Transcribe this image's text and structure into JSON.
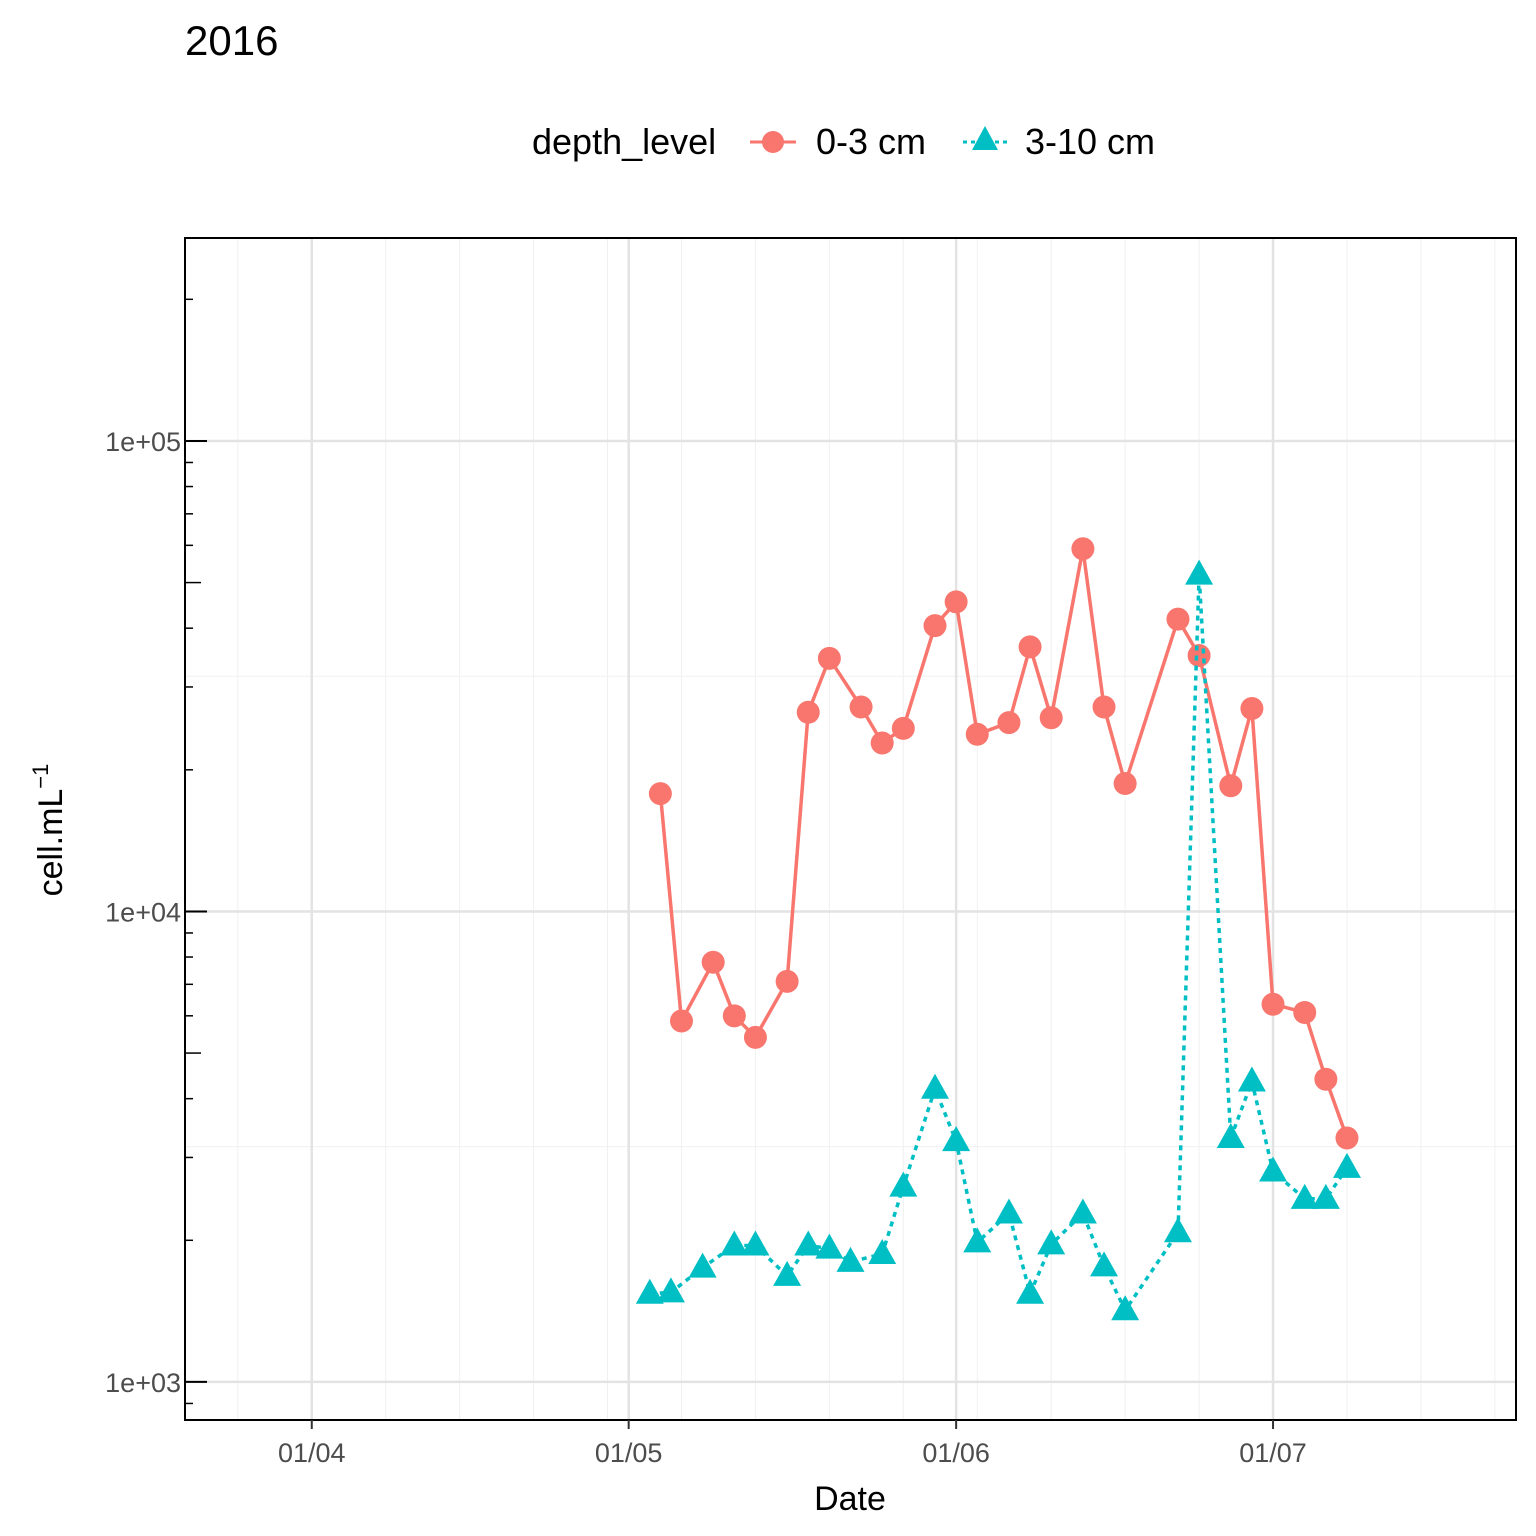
{
  "chart_data": {
    "type": "line",
    "title": "2016",
    "xlabel": "Date",
    "ylabel": "cell.mL",
    "ylabel_superscript": "−1",
    "x_scale": "date",
    "y_scale": "log10",
    "xlim": [
      "2016-03-20",
      "2016-07-24"
    ],
    "ylim": [
      830,
      270000
    ],
    "x_ticks": [
      {
        "date": "2016-04-01",
        "label": "01/04"
      },
      {
        "date": "2016-05-01",
        "label": "01/05"
      },
      {
        "date": "2016-06-01",
        "label": "01/06"
      },
      {
        "date": "2016-07-01",
        "label": "01/07"
      }
    ],
    "y_ticks": [
      {
        "value": 1000,
        "label": "1e+03"
      },
      {
        "value": 10000,
        "label": "1e+04"
      },
      {
        "value": 100000,
        "label": "1e+05"
      }
    ],
    "grid": true,
    "legend": {
      "title": "depth_level",
      "position": "top"
    },
    "series": [
      {
        "name": "0-3 cm",
        "color": "#F8766D",
        "marker": "circle",
        "line": "solid",
        "points": [
          {
            "x": "2016-05-04",
            "y": 17800
          },
          {
            "x": "2016-05-06",
            "y": 5850
          },
          {
            "x": "2016-05-09",
            "y": 7800
          },
          {
            "x": "2016-05-11",
            "y": 6000
          },
          {
            "x": "2016-05-13",
            "y": 5400
          },
          {
            "x": "2016-05-16",
            "y": 7100
          },
          {
            "x": "2016-05-18",
            "y": 26500
          },
          {
            "x": "2016-05-20",
            "y": 34500
          },
          {
            "x": "2016-05-23",
            "y": 27200
          },
          {
            "x": "2016-05-25",
            "y": 22800
          },
          {
            "x": "2016-05-27",
            "y": 24500
          },
          {
            "x": "2016-05-30",
            "y": 40500
          },
          {
            "x": "2016-06-01",
            "y": 45500
          },
          {
            "x": "2016-06-03",
            "y": 23800
          },
          {
            "x": "2016-06-06",
            "y": 25200
          },
          {
            "x": "2016-06-08",
            "y": 36500
          },
          {
            "x": "2016-06-10",
            "y": 25800
          },
          {
            "x": "2016-06-13",
            "y": 59000
          },
          {
            "x": "2016-06-15",
            "y": 27200
          },
          {
            "x": "2016-06-17",
            "y": 18700
          },
          {
            "x": "2016-06-22",
            "y": 41800
          },
          {
            "x": "2016-06-24",
            "y": 35000
          },
          {
            "x": "2016-06-27",
            "y": 18500
          },
          {
            "x": "2016-06-29",
            "y": 27000
          },
          {
            "x": "2016-07-01",
            "y": 6350
          },
          {
            "x": "2016-07-04",
            "y": 6100
          },
          {
            "x": "2016-07-06",
            "y": 4400
          },
          {
            "x": "2016-07-08",
            "y": 3300
          }
        ]
      },
      {
        "name": "3-10 cm",
        "color": "#00BFC4",
        "marker": "triangle",
        "line": "dotted",
        "points": [
          {
            "x": "2016-05-03",
            "y": 1540
          },
          {
            "x": "2016-05-05",
            "y": 1550
          },
          {
            "x": "2016-05-08",
            "y": 1750
          },
          {
            "x": "2016-05-11",
            "y": 1950
          },
          {
            "x": "2016-05-13",
            "y": 1950
          },
          {
            "x": "2016-05-16",
            "y": 1680
          },
          {
            "x": "2016-05-18",
            "y": 1950
          },
          {
            "x": "2016-05-20",
            "y": 1920
          },
          {
            "x": "2016-05-22",
            "y": 1800
          },
          {
            "x": "2016-05-25",
            "y": 1870
          },
          {
            "x": "2016-05-27",
            "y": 2600
          },
          {
            "x": "2016-05-30",
            "y": 4200
          },
          {
            "x": "2016-06-01",
            "y": 3250
          },
          {
            "x": "2016-06-03",
            "y": 1980
          },
          {
            "x": "2016-06-06",
            "y": 2280
          },
          {
            "x": "2016-06-08",
            "y": 1540
          },
          {
            "x": "2016-06-10",
            "y": 1960
          },
          {
            "x": "2016-06-13",
            "y": 2280
          },
          {
            "x": "2016-06-15",
            "y": 1760
          },
          {
            "x": "2016-06-17",
            "y": 1420
          },
          {
            "x": "2016-06-22",
            "y": 2080
          },
          {
            "x": "2016-06-24",
            "y": 52000
          },
          {
            "x": "2016-06-27",
            "y": 3300
          },
          {
            "x": "2016-06-29",
            "y": 4350
          },
          {
            "x": "2016-07-01",
            "y": 2800
          },
          {
            "x": "2016-07-04",
            "y": 2450
          },
          {
            "x": "2016-07-06",
            "y": 2450
          },
          {
            "x": "2016-07-08",
            "y": 2850
          }
        ]
      }
    ]
  }
}
